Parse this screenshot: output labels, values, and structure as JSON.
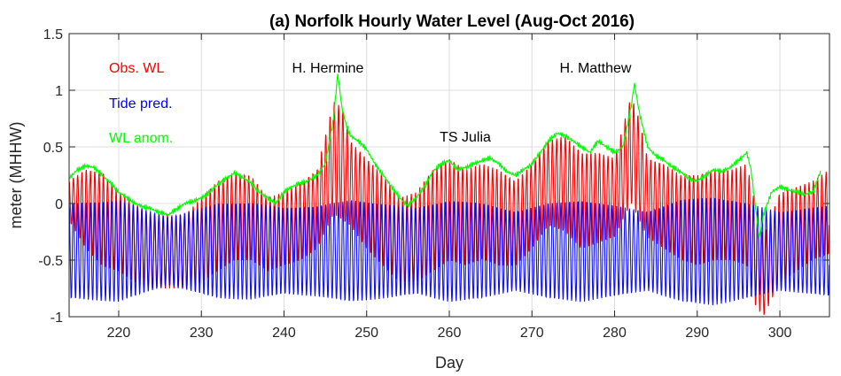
{
  "chart_data": {
    "type": "line",
    "title": "(a) Norfolk Hourly Water Level (Aug-Oct 2016)",
    "xlabel": "Day",
    "ylabel": "meter (MHHW)",
    "xlim": [
      214,
      306
    ],
    "ylim": [
      -1,
      1.5
    ],
    "xticks": [
      220,
      230,
      240,
      250,
      260,
      270,
      280,
      290,
      300
    ],
    "xtick_labels": [
      "220",
      "230",
      "240",
      "250",
      "260",
      "270",
      "280",
      "290",
      "300"
    ],
    "yticks": [
      -1,
      -0.5,
      0,
      0.5,
      1,
      1.5
    ],
    "ytick_labels": [
      "-1",
      "-0.5",
      "0",
      "0.5",
      "1",
      "1.5"
    ],
    "grid": true,
    "legend_position": "top-left",
    "colors": {
      "obs": "#ff0000",
      "tide": "#0000ff",
      "anom": "#00ff00"
    },
    "series": [
      {
        "name": "Obs. WL",
        "color": "#ff0000",
        "note": "hourly observed water level = tide prediction + anomaly",
        "envelope_high": [
          [
            214,
            0.2
          ],
          [
            216,
            0.3
          ],
          [
            218,
            0.28
          ],
          [
            220,
            0.1
          ],
          [
            222,
            0.0
          ],
          [
            224,
            -0.1
          ],
          [
            226,
            -0.1
          ],
          [
            228,
            -0.1
          ],
          [
            230,
            0.05
          ],
          [
            232,
            0.2
          ],
          [
            234,
            0.27
          ],
          [
            236,
            0.25
          ],
          [
            238,
            0.05
          ],
          [
            240,
            0.1
          ],
          [
            242,
            0.18
          ],
          [
            244,
            0.3
          ],
          [
            246,
            0.9
          ],
          [
            247,
            0.85
          ],
          [
            248,
            0.55
          ],
          [
            250,
            0.4
          ],
          [
            252,
            0.25
          ],
          [
            254,
            0.05
          ],
          [
            256,
            0.1
          ],
          [
            258,
            0.3
          ],
          [
            260,
            0.4
          ],
          [
            262,
            0.3
          ],
          [
            264,
            0.35
          ],
          [
            266,
            0.3
          ],
          [
            268,
            0.2
          ],
          [
            270,
            0.35
          ],
          [
            272,
            0.55
          ],
          [
            274,
            0.6
          ],
          [
            276,
            0.45
          ],
          [
            278,
            0.45
          ],
          [
            280,
            0.4
          ],
          [
            282,
            0.95
          ],
          [
            283,
            0.75
          ],
          [
            284,
            0.4
          ],
          [
            286,
            0.35
          ],
          [
            288,
            0.25
          ],
          [
            290,
            0.25
          ],
          [
            292,
            0.3
          ],
          [
            294,
            0.3
          ],
          [
            296,
            0.35
          ],
          [
            297,
            0.0
          ],
          [
            298,
            -0.3
          ],
          [
            300,
            0.1
          ],
          [
            302,
            0.15
          ],
          [
            304,
            0.2
          ],
          [
            306,
            0.3
          ]
        ],
        "envelope_low": [
          [
            214,
            -0.15
          ],
          [
            216,
            -0.4
          ],
          [
            218,
            -0.55
          ],
          [
            220,
            -0.6
          ],
          [
            222,
            -0.7
          ],
          [
            224,
            -0.75
          ],
          [
            226,
            -0.75
          ],
          [
            228,
            -0.75
          ],
          [
            230,
            -0.7
          ],
          [
            232,
            -0.6
          ],
          [
            234,
            -0.5
          ],
          [
            236,
            -0.5
          ],
          [
            238,
            -0.6
          ],
          [
            240,
            -0.55
          ],
          [
            242,
            -0.5
          ],
          [
            244,
            -0.4
          ],
          [
            246,
            -0.1
          ],
          [
            248,
            -0.2
          ],
          [
            250,
            -0.4
          ],
          [
            252,
            -0.55
          ],
          [
            254,
            -0.7
          ],
          [
            256,
            -0.7
          ],
          [
            258,
            -0.6
          ],
          [
            260,
            -0.5
          ],
          [
            262,
            -0.55
          ],
          [
            264,
            -0.5
          ],
          [
            266,
            -0.55
          ],
          [
            268,
            -0.55
          ],
          [
            270,
            -0.4
          ],
          [
            272,
            -0.2
          ],
          [
            274,
            -0.25
          ],
          [
            276,
            -0.4
          ],
          [
            278,
            -0.35
          ],
          [
            280,
            -0.3
          ],
          [
            282,
            0.0
          ],
          [
            284,
            -0.3
          ],
          [
            286,
            -0.4
          ],
          [
            288,
            -0.5
          ],
          [
            290,
            -0.55
          ],
          [
            292,
            -0.5
          ],
          [
            294,
            -0.5
          ],
          [
            296,
            -0.55
          ],
          [
            297,
            -0.9
          ],
          [
            298,
            -1.0
          ],
          [
            300,
            -0.7
          ],
          [
            302,
            -0.6
          ],
          [
            304,
            -0.5
          ],
          [
            306,
            -0.45
          ]
        ]
      },
      {
        "name": "Tide pred.",
        "color": "#0000ff",
        "note": "semidiurnal astronomical tide, ~12.42 h period",
        "mean": -0.42,
        "amplitude_envelope": [
          [
            214,
            0.42
          ],
          [
            220,
            0.45
          ],
          [
            226,
            0.3
          ],
          [
            232,
            0.42
          ],
          [
            236,
            0.43
          ],
          [
            240,
            0.38
          ],
          [
            244,
            0.4
          ],
          [
            248,
            0.45
          ],
          [
            252,
            0.42
          ],
          [
            256,
            0.38
          ],
          [
            260,
            0.45
          ],
          [
            264,
            0.42
          ],
          [
            268,
            0.35
          ],
          [
            272,
            0.42
          ],
          [
            276,
            0.45
          ],
          [
            280,
            0.4
          ],
          [
            284,
            0.35
          ],
          [
            288,
            0.45
          ],
          [
            292,
            0.48
          ],
          [
            296,
            0.42
          ],
          [
            300,
            0.35
          ],
          [
            306,
            0.4
          ]
        ]
      },
      {
        "name": "WL anom.",
        "color": "#00ff00",
        "note": "non-tidal water level anomaly",
        "points": [
          [
            214,
            0.22
          ],
          [
            215,
            0.3
          ],
          [
            216,
            0.33
          ],
          [
            217,
            0.32
          ],
          [
            218,
            0.25
          ],
          [
            219,
            0.18
          ],
          [
            220,
            0.1
          ],
          [
            221,
            0.05
          ],
          [
            222,
            0.0
          ],
          [
            223,
            -0.03
          ],
          [
            224,
            -0.05
          ],
          [
            225,
            -0.08
          ],
          [
            226,
            -0.1
          ],
          [
            227,
            -0.05
          ],
          [
            228,
            0.0
          ],
          [
            229,
            0.02
          ],
          [
            230,
            0.05
          ],
          [
            231,
            0.1
          ],
          [
            232,
            0.17
          ],
          [
            233,
            0.22
          ],
          [
            234,
            0.27
          ],
          [
            235,
            0.23
          ],
          [
            236,
            0.18
          ],
          [
            237,
            0.1
          ],
          [
            238,
            0.05
          ],
          [
            239,
            0.0
          ],
          [
            240,
            0.1
          ],
          [
            241,
            0.15
          ],
          [
            242,
            0.18
          ],
          [
            243,
            0.2
          ],
          [
            244,
            0.25
          ],
          [
            245,
            0.35
          ],
          [
            246,
            0.75
          ],
          [
            246.5,
            1.15
          ],
          [
            247,
            0.85
          ],
          [
            247.5,
            0.7
          ],
          [
            248,
            0.6
          ],
          [
            249,
            0.55
          ],
          [
            250,
            0.48
          ],
          [
            251,
            0.35
          ],
          [
            252,
            0.25
          ],
          [
            253,
            0.15
          ],
          [
            254,
            0.05
          ],
          [
            255,
            -0.02
          ],
          [
            256,
            0.05
          ],
          [
            257,
            0.15
          ],
          [
            258,
            0.28
          ],
          [
            259,
            0.35
          ],
          [
            260,
            0.38
          ],
          [
            261,
            0.3
          ],
          [
            262,
            0.32
          ],
          [
            263,
            0.35
          ],
          [
            264,
            0.38
          ],
          [
            265,
            0.4
          ],
          [
            266,
            0.35
          ],
          [
            267,
            0.28
          ],
          [
            268,
            0.25
          ],
          [
            269,
            0.3
          ],
          [
            270,
            0.35
          ],
          [
            271,
            0.45
          ],
          [
            272,
            0.55
          ],
          [
            273,
            0.62
          ],
          [
            274,
            0.6
          ],
          [
            275,
            0.55
          ],
          [
            276,
            0.5
          ],
          [
            277,
            0.45
          ],
          [
            278,
            0.55
          ],
          [
            279,
            0.5
          ],
          [
            280,
            0.45
          ],
          [
            281,
            0.5
          ],
          [
            282,
            0.85
          ],
          [
            282.4,
            1.06
          ],
          [
            283,
            0.8
          ],
          [
            284,
            0.5
          ],
          [
            285,
            0.42
          ],
          [
            286,
            0.38
          ],
          [
            287,
            0.32
          ],
          [
            288,
            0.28
          ],
          [
            289,
            0.22
          ],
          [
            290,
            0.2
          ],
          [
            291,
            0.25
          ],
          [
            292,
            0.3
          ],
          [
            293,
            0.28
          ],
          [
            294,
            0.32
          ],
          [
            295,
            0.38
          ],
          [
            296,
            0.45
          ],
          [
            296.5,
            0.3
          ],
          [
            297,
            0.0
          ],
          [
            297.5,
            -0.3
          ],
          [
            298,
            -0.1
          ],
          [
            299,
            0.1
          ],
          [
            300,
            0.15
          ],
          [
            301,
            0.12
          ],
          [
            302,
            0.1
          ],
          [
            303,
            0.08
          ],
          [
            304,
            0.1
          ],
          [
            305,
            0.3
          ]
        ]
      }
    ],
    "legend": [
      {
        "label": "Obs. WL",
        "color": "#ff0000"
      },
      {
        "label": "Tide pred.",
        "color": "#0000ff"
      },
      {
        "label": "WL anom.",
        "color": "#00ff00"
      }
    ],
    "annotations": [
      {
        "text": "H. Hermine",
        "x": 246,
        "y": 1.17
      },
      {
        "text": "TS Julia",
        "x": 262.5,
        "y": 0.57
      },
      {
        "text": "H. Matthew",
        "x": 282,
        "y": 1.17
      }
    ]
  }
}
